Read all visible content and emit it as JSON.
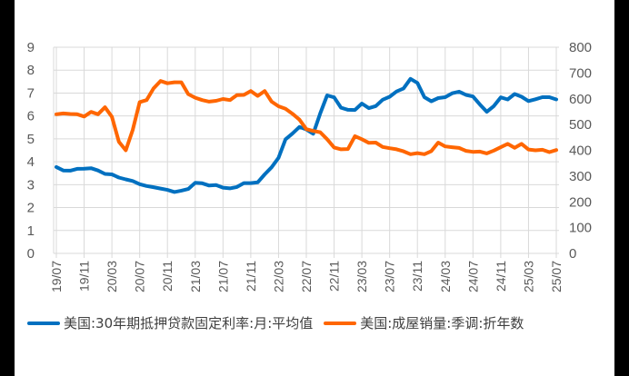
{
  "chart_data": {
    "type": "line",
    "title": "",
    "xlabel": "",
    "ylabel_left": "",
    "ylabel_right": "",
    "grid": true,
    "legend_position": "bottom",
    "y_left": {
      "min": 0,
      "max": 9,
      "ticks": [
        "0",
        "1",
        "2",
        "3",
        "4",
        "5",
        "6",
        "7",
        "8",
        "9"
      ]
    },
    "y_right": {
      "min": 0,
      "max": 800,
      "ticks": [
        "0",
        "100",
        "200",
        "300",
        "400",
        "500",
        "600",
        "700",
        "800"
      ]
    },
    "x_tick_labels": [
      "19/07",
      "19/11",
      "20/03",
      "20/07",
      "20/11",
      "21/03",
      "21/07",
      "21/11",
      "22/03",
      "22/07",
      "22/11",
      "23/03",
      "23/07",
      "23/11",
      "24/03",
      "24/07",
      "24/11",
      "25/03",
      "25/07"
    ],
    "x": [
      "19/07",
      "19/08",
      "19/09",
      "19/10",
      "19/11",
      "19/12",
      "20/01",
      "20/02",
      "20/03",
      "20/04",
      "20/05",
      "20/06",
      "20/07",
      "20/08",
      "20/09",
      "20/10",
      "20/11",
      "20/12",
      "21/01",
      "21/02",
      "21/03",
      "21/04",
      "21/05",
      "21/06",
      "21/07",
      "21/08",
      "21/09",
      "21/10",
      "21/11",
      "21/12",
      "22/01",
      "22/02",
      "22/03",
      "22/04",
      "22/05",
      "22/06",
      "22/07",
      "22/08",
      "22/09",
      "22/10",
      "22/11",
      "22/12",
      "23/01",
      "23/02",
      "23/03",
      "23/04",
      "23/05",
      "23/06",
      "23/07",
      "23/08",
      "23/09",
      "23/10",
      "23/11",
      "23/12",
      "24/01",
      "24/02",
      "24/03",
      "24/04",
      "24/05",
      "24/06",
      "24/07",
      "24/08",
      "24/09",
      "24/10",
      "24/11",
      "24/12",
      "25/01",
      "25/02",
      "25/03",
      "25/04",
      "25/05",
      "25/06",
      "25/07"
    ],
    "series": [
      {
        "name": "美国:30年期抵押贷款固定利率:月:平均值",
        "axis": "left",
        "color": "#0070C0",
        "values": [
          3.77,
          3.62,
          3.61,
          3.69,
          3.7,
          3.72,
          3.62,
          3.47,
          3.45,
          3.31,
          3.23,
          3.16,
          3.02,
          2.94,
          2.89,
          2.83,
          2.77,
          2.68,
          2.74,
          2.81,
          3.08,
          3.06,
          2.96,
          2.98,
          2.87,
          2.84,
          2.9,
          3.07,
          3.07,
          3.1,
          3.45,
          3.76,
          4.17,
          4.98,
          5.23,
          5.52,
          5.41,
          5.22,
          6.11,
          6.9,
          6.81,
          6.36,
          6.27,
          6.26,
          6.54,
          6.34,
          6.43,
          6.71,
          6.84,
          7.07,
          7.2,
          7.62,
          7.44,
          6.82,
          6.64,
          6.78,
          6.82,
          6.99,
          7.06,
          6.92,
          6.85,
          6.5,
          6.18,
          6.43,
          6.81,
          6.72,
          6.96,
          6.84,
          6.65,
          6.73,
          6.82,
          6.82,
          6.72
        ]
      },
      {
        "name": "美国:成屋销量:季调:折年数",
        "axis": "right",
        "color": "#FF6600",
        "values": [
          540,
          543,
          541,
          540,
          531,
          549,
          540,
          567,
          530,
          433,
          400,
          479,
          587,
          595,
          640,
          669,
          660,
          664,
          664,
          618,
          604,
          595,
          589,
          592,
          599,
          595,
          614,
          615,
          630,
          611,
          630,
          589,
          571,
          561,
          542,
          519,
          482,
          475,
          470,
          443,
          411,
          404,
          405,
          455,
          443,
          429,
          430,
          413,
          408,
          404,
          396,
          385,
          389,
          385,
          397,
          430,
          415,
          412,
          409,
          398,
          394,
          395,
          388,
          399,
          412,
          425,
          410,
          425,
          403,
          400,
          402,
          393,
          401
        ]
      }
    ]
  },
  "legend": {
    "items": [
      {
        "label": "美国:30年期抵押贷款固定利率:月:平均值",
        "color": "#0070C0"
      },
      {
        "label": "美国:成屋销量:季调:折年数",
        "color": "#FF6600"
      }
    ]
  }
}
